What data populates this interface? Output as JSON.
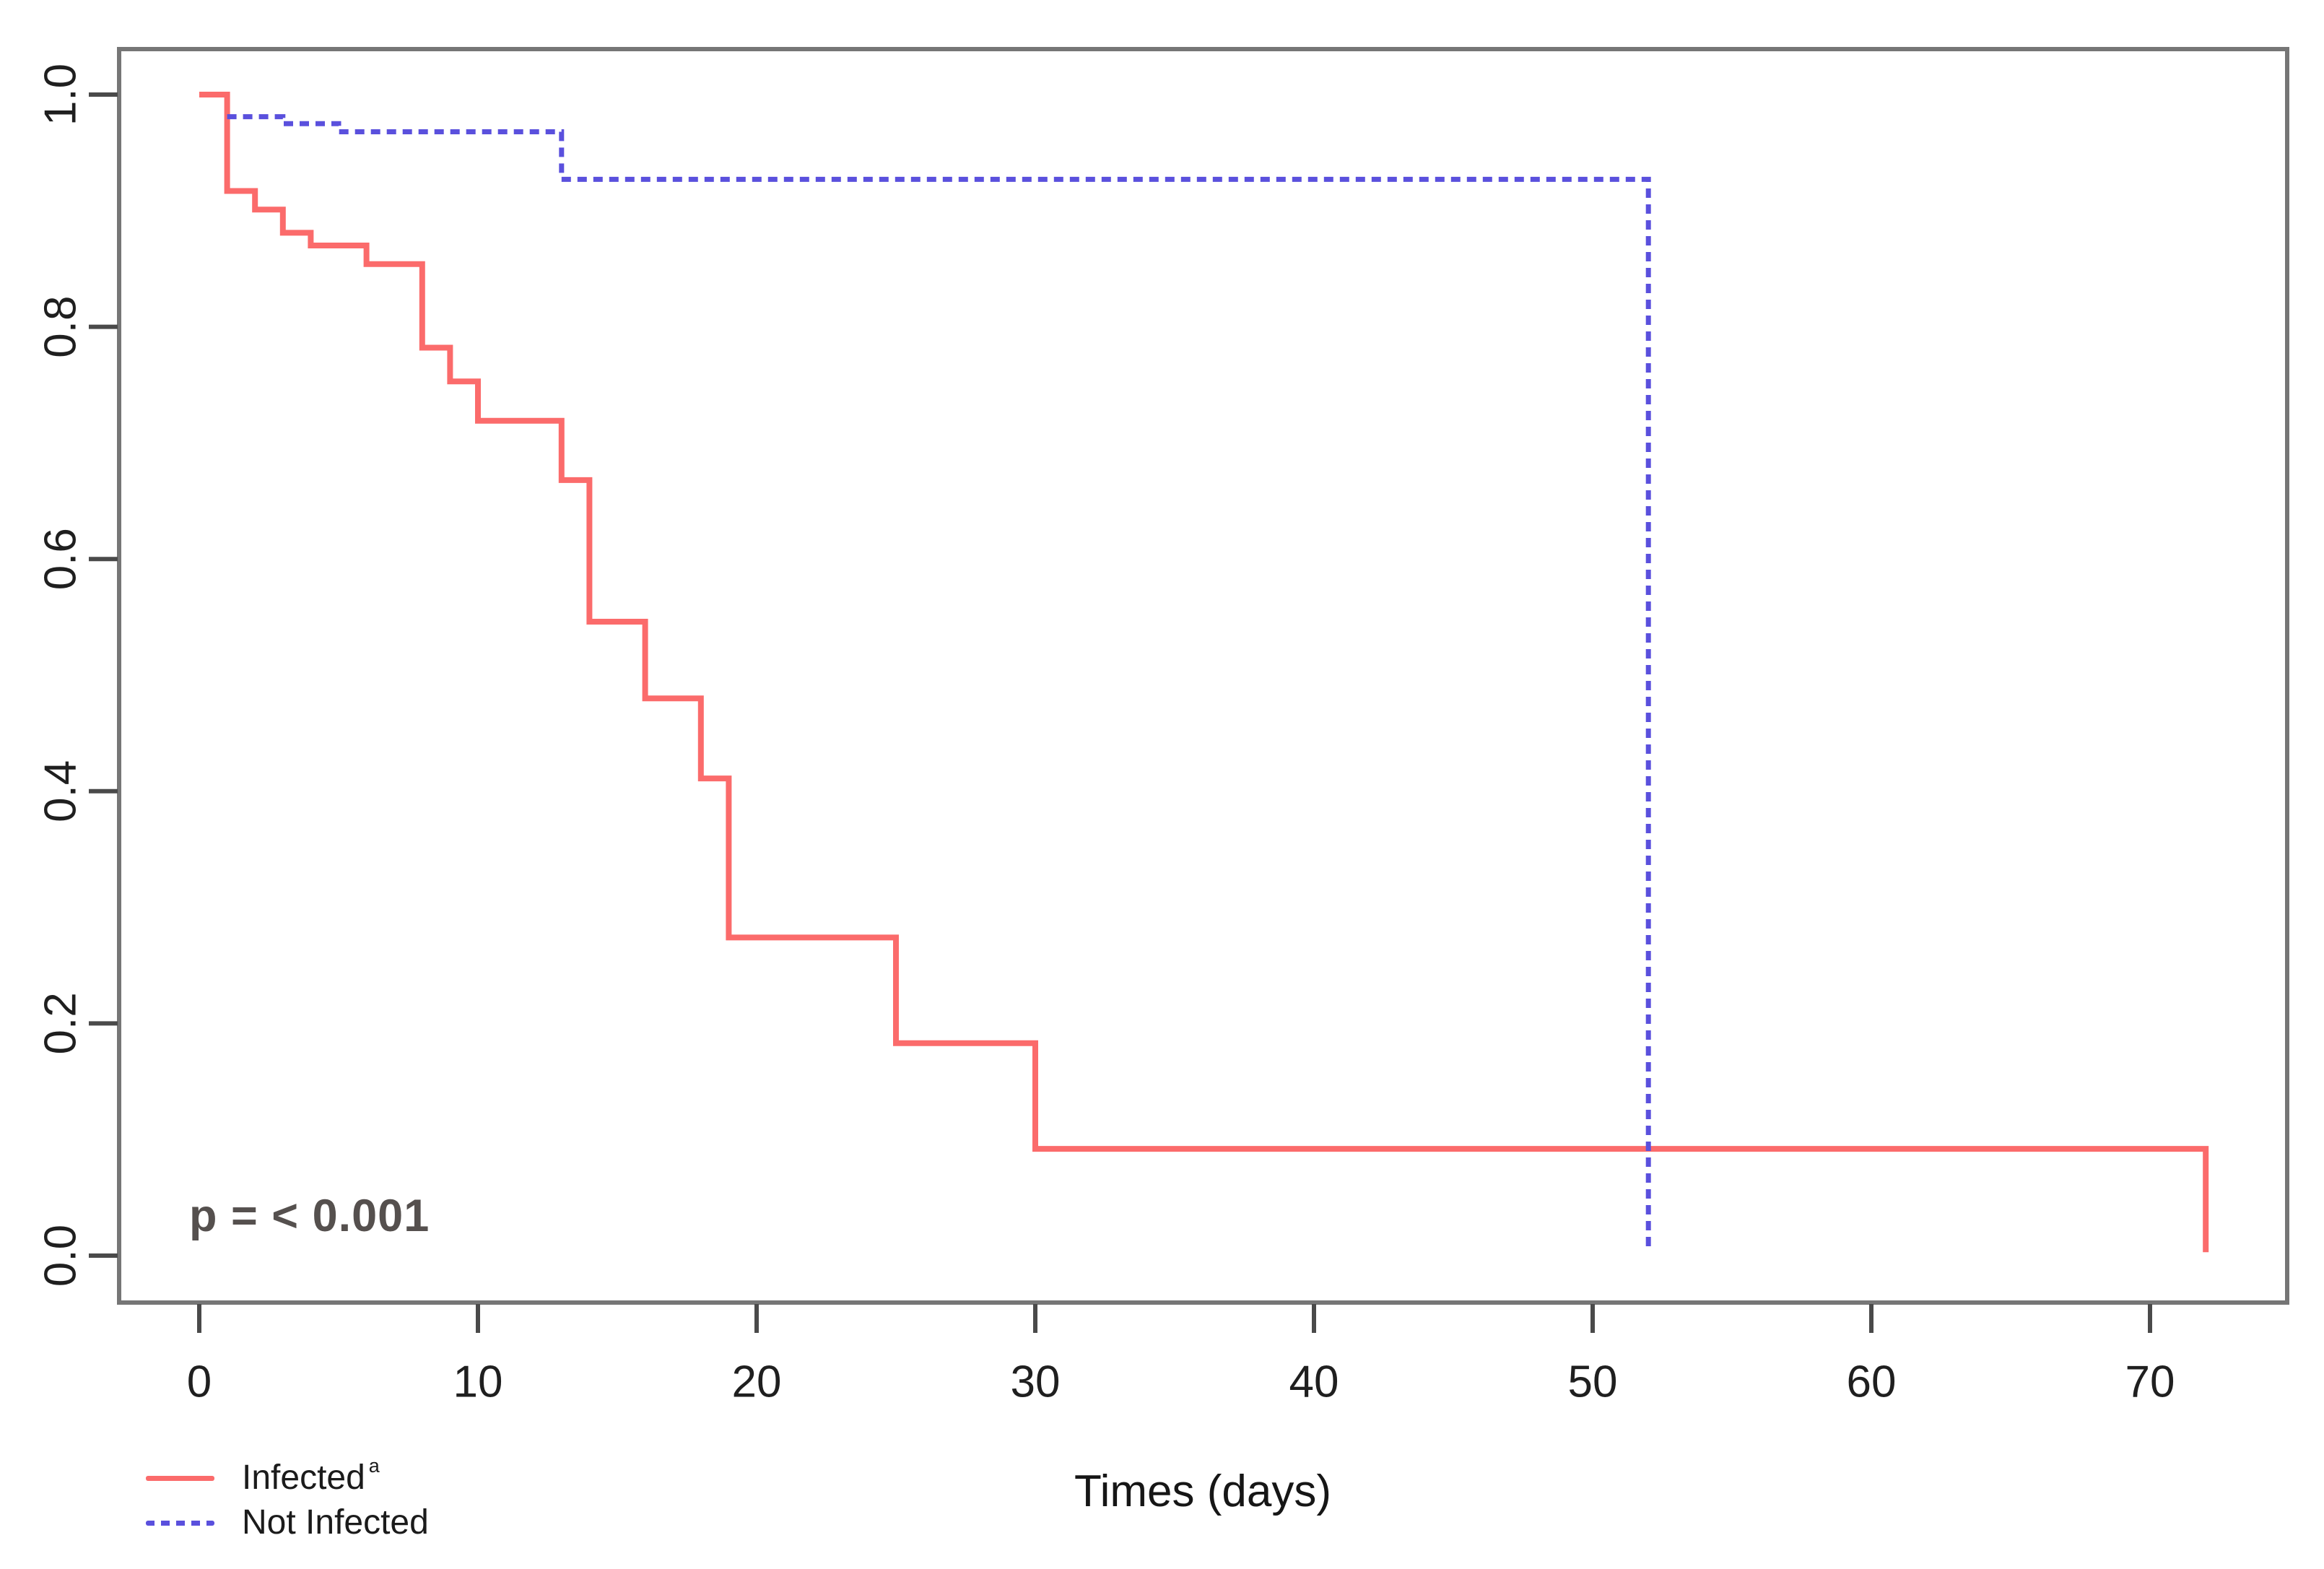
{
  "chart_data": {
    "type": "line",
    "subtype": "kaplan-meier-step-curves",
    "title": "",
    "xlabel": "Times (days)",
    "ylabel": "",
    "x_ticks": [
      0,
      10,
      20,
      30,
      40,
      50,
      60,
      70
    ],
    "y_ticks": [
      "0.0",
      "0.2",
      "0.4",
      "0.6",
      "0.8",
      "1.0"
    ],
    "xlim": [
      -2.9,
      74.9
    ],
    "ylim": [
      -0.04,
      1.04
    ],
    "grid": false,
    "legend_position": "bottom-left",
    "annotation": "p = < 0.001",
    "series": [
      {
        "name": "Infected",
        "superscript": "a",
        "color": "#fb6b6b",
        "line_style": "solid",
        "steps": [
          [
            0,
            1.0
          ],
          [
            1,
            0.917
          ],
          [
            2,
            0.901
          ],
          [
            3,
            0.881
          ],
          [
            4,
            0.87
          ],
          [
            6,
            0.854
          ],
          [
            8,
            0.782
          ],
          [
            9,
            0.753
          ],
          [
            10,
            0.719
          ],
          [
            13,
            0.668
          ],
          [
            14,
            0.546
          ],
          [
            16,
            0.48
          ],
          [
            18,
            0.411
          ],
          [
            19,
            0.274
          ],
          [
            25,
            0.183
          ],
          [
            30,
            0.092
          ],
          [
            72,
            0.003
          ]
        ]
      },
      {
        "name": "Not Infected",
        "superscript": "",
        "color": "#5a50dd",
        "line_style": "dashed",
        "steps": [
          [
            1,
            0.981
          ],
          [
            3,
            0.975
          ],
          [
            5,
            0.968
          ],
          [
            13,
            0.927
          ],
          [
            52,
            0.003
          ]
        ]
      }
    ]
  }
}
